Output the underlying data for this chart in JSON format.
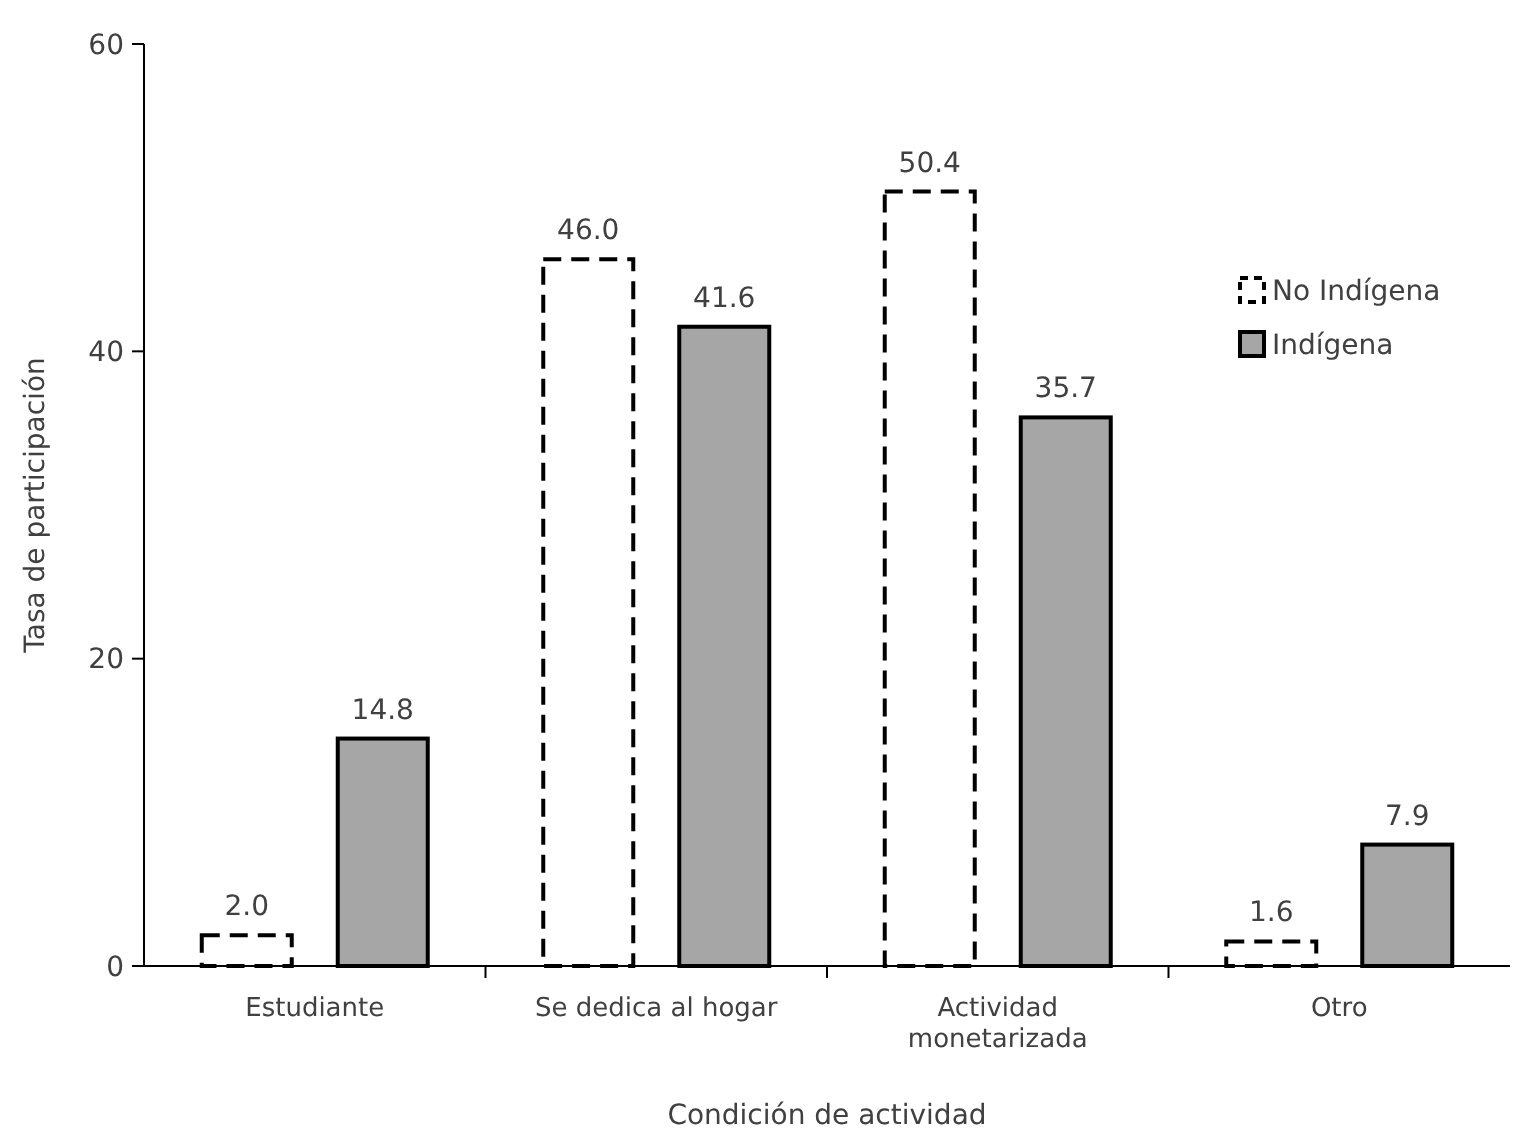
{
  "chart_data": {
    "type": "bar",
    "xlabel": "Condición de actividad",
    "ylabel": "Tasa de participación",
    "categories": [
      "Estudiante",
      "Se dedica al hogar",
      "Actividad monetarizada",
      "Otro"
    ],
    "series": [
      {
        "name": "No Indígena",
        "color": "#ffffff",
        "line_style": "dashed",
        "values": [
          2.0,
          46.0,
          50.4,
          1.6
        ],
        "value_labels": [
          "2.0",
          "46.0",
          "50.4",
          "1.6"
        ]
      },
      {
        "name": "Indígena",
        "color": "#a6a6a6",
        "line_style": "solid",
        "values": [
          14.8,
          41.6,
          35.7,
          7.9
        ],
        "value_labels": [
          "14.8",
          "41.6",
          "35.7",
          "7.9"
        ]
      }
    ],
    "ylim": [
      0,
      60
    ],
    "yticks": [
      0,
      20,
      40,
      60
    ],
    "legend": "top right",
    "grid": false
  }
}
